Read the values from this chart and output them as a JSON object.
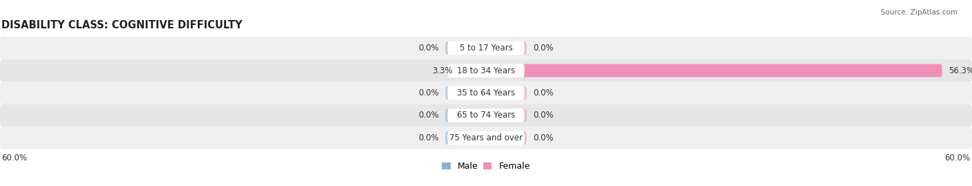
{
  "title": "DISABILITY CLASS: COGNITIVE DIFFICULTY",
  "source": "Source: ZipAtlas.com",
  "categories": [
    "5 to 17 Years",
    "18 to 34 Years",
    "35 to 64 Years",
    "65 to 74 Years",
    "75 Years and over"
  ],
  "male_values": [
    0.0,
    3.3,
    0.0,
    0.0,
    0.0
  ],
  "female_values": [
    0.0,
    56.3,
    0.0,
    0.0,
    0.0
  ],
  "max_val": 60.0,
  "stub_val": 5.0,
  "male_color": "#8ab0d4",
  "female_color": "#f090b8",
  "row_bg_color": "#efefef",
  "row_bg_alt_color": "#e6e6e6",
  "label_color": "#333333",
  "pill_color": "#ffffff",
  "title_fontsize": 10.5,
  "label_fontsize": 8.5,
  "value_fontsize": 8.5,
  "axis_label_fontsize": 8.5,
  "legend_fontsize": 9
}
